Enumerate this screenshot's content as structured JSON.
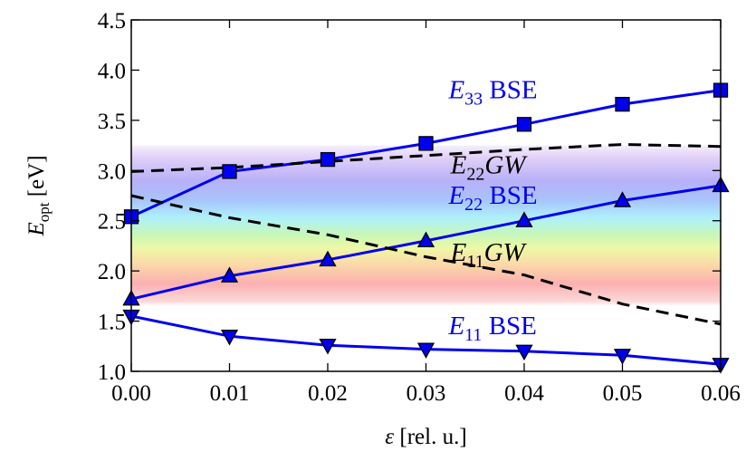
{
  "chart_data": {
    "type": "line",
    "x": [
      0.0,
      0.01,
      0.02,
      0.03,
      0.04,
      0.05,
      0.06
    ],
    "xlim": [
      0.0,
      0.06
    ],
    "ylim": [
      1.0,
      4.5
    ],
    "x_ticks": [
      "0.00",
      "0.01",
      "0.02",
      "0.03",
      "0.04",
      "0.05",
      "0.06"
    ],
    "y_ticks": [
      "1.0",
      "1.5",
      "2.0",
      "2.5",
      "3.0",
      "3.5",
      "4.0",
      "4.5"
    ],
    "xlabel": {
      "symbol": "ε",
      "rest": " [rel. u.]"
    },
    "ylabel": {
      "symbol": "E",
      "sub": "opt",
      "rest": " [eV]"
    },
    "visible_spectrum_band": [
      1.65,
      3.25
    ],
    "series": [
      {
        "name": "E33 BSE",
        "style": "solid",
        "marker": "square",
        "color": "#0000ee",
        "values": [
          2.54,
          2.99,
          3.11,
          3.27,
          3.46,
          3.66,
          3.8
        ]
      },
      {
        "name": "E22 BSE",
        "style": "solid",
        "marker": "triangle-up",
        "color": "#0000ee",
        "values": [
          1.72,
          1.95,
          2.11,
          2.3,
          2.5,
          2.7,
          2.85
        ]
      },
      {
        "name": "E11 BSE",
        "style": "solid",
        "marker": "triangle-down",
        "color": "#0000ee",
        "values": [
          1.55,
          1.35,
          1.26,
          1.22,
          1.2,
          1.16,
          1.07
        ]
      },
      {
        "name": "E22GW",
        "style": "dashed",
        "marker": "none",
        "color": "#000000",
        "x": [
          0.0,
          0.01,
          0.02,
          0.03,
          0.04,
          0.05,
          0.06
        ],
        "values": [
          2.99,
          3.03,
          3.09,
          3.15,
          3.21,
          3.26,
          3.24
        ]
      },
      {
        "name": "E11GW",
        "style": "dashed",
        "marker": "none",
        "color": "#000000",
        "x": [
          0.0,
          0.01,
          0.02,
          0.03,
          0.04,
          0.05,
          0.06
        ],
        "values": [
          2.75,
          2.53,
          2.36,
          2.14,
          1.96,
          1.67,
          1.47
        ]
      }
    ],
    "annotations": [
      {
        "id": "e33",
        "base": "E",
        "sub": "33",
        "rest": " BSE",
        "color": "#0000ee",
        "x": 0.0323,
        "y": 3.72
      },
      {
        "id": "e22gw",
        "base": "E",
        "sub": "22",
        "rest": "GW",
        "color": "#000000",
        "x": 0.0325,
        "y": 2.97
      },
      {
        "id": "e22",
        "base": "E",
        "sub": "22",
        "rest": " BSE",
        "color": "#0000ee",
        "x": 0.0323,
        "y": 2.67
      },
      {
        "id": "e11gw",
        "base": "E",
        "sub": "11",
        "rest": "GW",
        "color": "#000000",
        "x": 0.0325,
        "y": 2.1
      },
      {
        "id": "e11",
        "base": "E",
        "sub": "11",
        "rest": " BSE",
        "color": "#0000ee",
        "x": 0.0323,
        "y": 1.37
      }
    ]
  }
}
